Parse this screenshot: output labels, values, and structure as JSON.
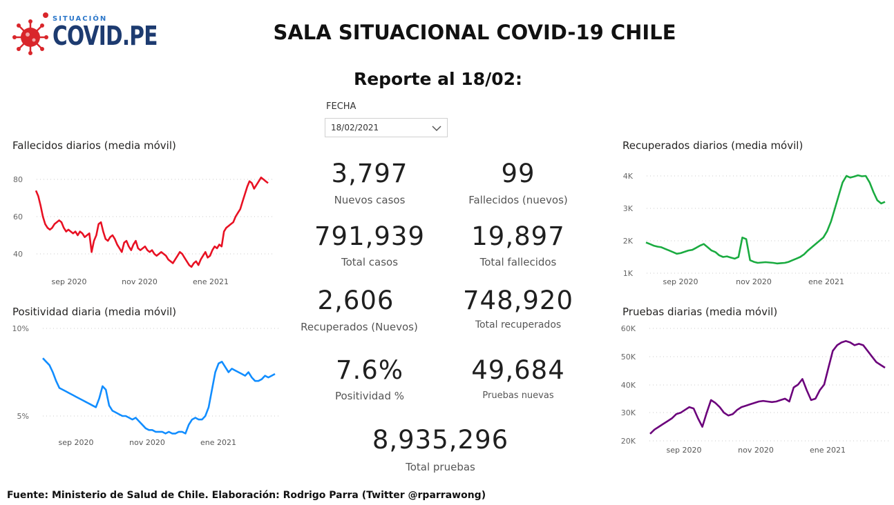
{
  "header": {
    "logo_small": "SITUACIÓN",
    "logo_big": "COVID.PE",
    "title": "SALA SITUACIONAL COVID-19 CHILE",
    "subtitle": "Reporte al 18/02:"
  },
  "filter": {
    "label": "FECHA",
    "value": "18/02/2021"
  },
  "kpis": [
    {
      "value": "3,797",
      "label": "Nuevos casos"
    },
    {
      "value": "99",
      "label": "Fallecidos (nuevos)"
    },
    {
      "value": "791,939",
      "label": "Total casos"
    },
    {
      "value": "19,897",
      "label": "Total fallecidos"
    },
    {
      "value": "2,606",
      "label": "Recuperados (Nuevos)"
    },
    {
      "value": "748,920",
      "label": "Total recuperados"
    },
    {
      "value": "7.6%",
      "label": "Positividad %"
    },
    {
      "value": "49,684",
      "label": "Pruebas nuevas"
    },
    {
      "value": "8,935,296",
      "label": "Total pruebas"
    }
  ],
  "footer": "Fuente: Ministerio de Salud de Chile. Elaboración: Rodrigo Parra (Twitter @rparrawong)",
  "chart_data": [
    {
      "type": "line",
      "title": "Fallecidos diarios (media móvil)",
      "color": "#e81123",
      "x_ticks": [
        "sep 2020",
        "nov 2020",
        "ene 2021"
      ],
      "y_ticks": [
        "40",
        "60",
        "80"
      ],
      "ylim": [
        31,
        84
      ],
      "grid": true,
      "series": [
        {
          "values": [
            74,
            71,
            66,
            60,
            56,
            54,
            53,
            54,
            56,
            57,
            58,
            57,
            54,
            52,
            53,
            52,
            51,
            52,
            50,
            52,
            51,
            49,
            50,
            51,
            41,
            47,
            50,
            56,
            57,
            52,
            48,
            47,
            49,
            50,
            48,
            45,
            43,
            41,
            46,
            47,
            44,
            42,
            45,
            47,
            43,
            42,
            43,
            44,
            42,
            41,
            42,
            40,
            39,
            40,
            41,
            40,
            39,
            37,
            36,
            35,
            37,
            39,
            41,
            40,
            38,
            36,
            34,
            33,
            35,
            36,
            34,
            37,
            39,
            41,
            38,
            39,
            42,
            44,
            43,
            45,
            44,
            52,
            54,
            55,
            56,
            57,
            60,
            62,
            64,
            68,
            72,
            76,
            79,
            78,
            75,
            77,
            79,
            81,
            80,
            79,
            78
          ]
        }
      ]
    },
    {
      "type": "line",
      "title": "Positividad diaria (media móvil)",
      "color": "#118dff",
      "x_ticks": [
        "sep 2020",
        "nov 2020",
        "ene 2021"
      ],
      "y_ticks": [
        "5%",
        "10%"
      ],
      "ylim": [
        4.0,
        10.0
      ],
      "grid": true,
      "series": [
        {
          "values": [
            8.3,
            8.1,
            7.9,
            7.5,
            7.0,
            6.6,
            6.5,
            6.4,
            6.3,
            6.2,
            6.1,
            6.0,
            5.9,
            5.8,
            5.7,
            5.6,
            5.5,
            6.0,
            6.7,
            6.5,
            5.6,
            5.3,
            5.2,
            5.1,
            5.0,
            5.0,
            4.9,
            4.8,
            4.9,
            4.7,
            4.5,
            4.3,
            4.2,
            4.2,
            4.1,
            4.1,
            4.1,
            4.0,
            4.1,
            4.0,
            4.0,
            4.1,
            4.1,
            4.0,
            4.5,
            4.8,
            4.9,
            4.8,
            4.8,
            5.0,
            5.5,
            6.5,
            7.5,
            8.0,
            8.1,
            7.8,
            7.5,
            7.7,
            7.6,
            7.5,
            7.4,
            7.3,
            7.5,
            7.2,
            7.0,
            7.0,
            7.1,
            7.3,
            7.2,
            7.3,
            7.4
          ]
        }
      ]
    },
    {
      "type": "line",
      "title": "Recuperados diarios (media móvil)",
      "color": "#1aab40",
      "x_ticks": [
        "sep 2020",
        "nov 2020",
        "ene 2021"
      ],
      "y_ticks": [
        "1K",
        "2K",
        "3K",
        "4K"
      ],
      "ylim": [
        1000,
        4200
      ],
      "grid": true,
      "series": [
        {
          "values": [
            1950,
            1900,
            1850,
            1820,
            1800,
            1750,
            1700,
            1650,
            1600,
            1620,
            1660,
            1700,
            1720,
            1780,
            1850,
            1900,
            1800,
            1700,
            1650,
            1550,
            1500,
            1520,
            1480,
            1450,
            1500,
            2100,
            2050,
            1400,
            1350,
            1320,
            1330,
            1340,
            1330,
            1320,
            1300,
            1310,
            1320,
            1350,
            1400,
            1450,
            1500,
            1580,
            1700,
            1800,
            1900,
            2000,
            2100,
            2300,
            2600,
            3000,
            3400,
            3800,
            4000,
            3950,
            3980,
            4020,
            3990,
            4000,
            3800,
            3500,
            3250,
            3150,
            3200
          ]
        }
      ]
    },
    {
      "type": "line",
      "title": "Pruebas diarias (media móvil)",
      "color": "#6b007b",
      "x_ticks": [
        "sep 2020",
        "nov 2020",
        "ene 2021"
      ],
      "y_ticks": [
        "20K",
        "30K",
        "40K",
        "50K",
        "60K"
      ],
      "ylim": [
        20000,
        60000
      ],
      "grid": true,
      "series": [
        {
          "values": [
            22500,
            24000,
            25000,
            26000,
            27000,
            28000,
            29500,
            30000,
            31000,
            32000,
            31500,
            28000,
            25000,
            30000,
            34500,
            33500,
            32000,
            30000,
            29000,
            29500,
            31000,
            32000,
            32500,
            33000,
            33500,
            34000,
            34200,
            34000,
            33800,
            34000,
            34500,
            35000,
            34000,
            39000,
            40000,
            42000,
            38000,
            34500,
            35000,
            38000,
            40000,
            46000,
            52000,
            54000,
            55000,
            55500,
            55000,
            54000,
            54500,
            54000,
            52000,
            50000,
            48000,
            47000,
            46000
          ]
        }
      ]
    }
  ]
}
